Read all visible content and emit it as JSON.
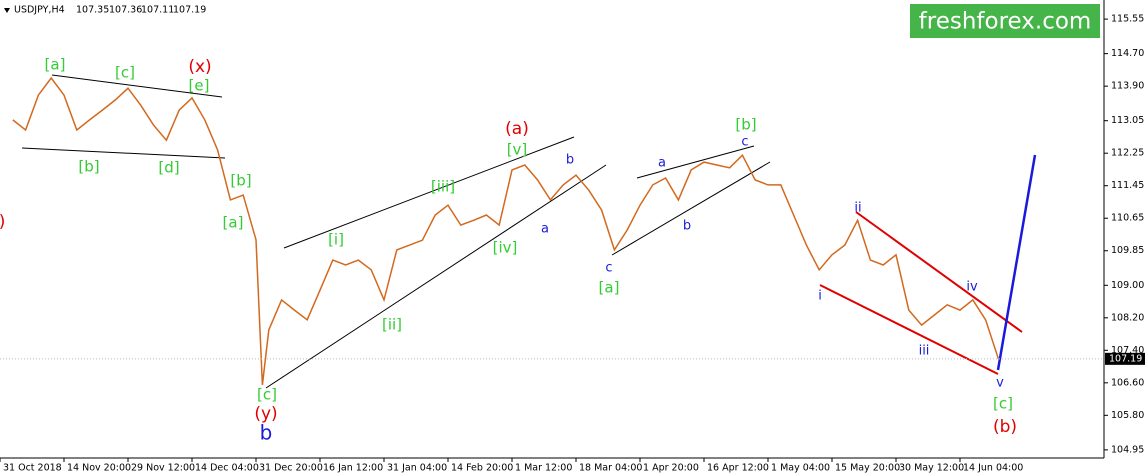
{
  "chart_data": {
    "type": "line",
    "header": {
      "symbol": "USDJPY,H4",
      "open": 107.35,
      "high": 107.36,
      "low": 107.11,
      "close": 107.19
    },
    "logo": "freshforex.com",
    "x": [
      2,
      4,
      6,
      8,
      10,
      12,
      14,
      16,
      18,
      20,
      22,
      24,
      26,
      28,
      30,
      32,
      34,
      36,
      38,
      40,
      41,
      42,
      44,
      46,
      48,
      50,
      52,
      54,
      56,
      58,
      60,
      62,
      64,
      66,
      68,
      70,
      72,
      74,
      76,
      78,
      80,
      82,
      84,
      86,
      88,
      90,
      92,
      94,
      96,
      98,
      100,
      102,
      104,
      106,
      108,
      110,
      112,
      114,
      116,
      118,
      120,
      122,
      124,
      126,
      128,
      130,
      132,
      134,
      136,
      138,
      140,
      142,
      144,
      146,
      148,
      150,
      152,
      154,
      156
    ],
    "series": [
      {
        "name": "USDJPY",
        "color": "#d2691e",
        "values": [
          113.07,
          112.82,
          113.68,
          114.1,
          113.68,
          112.82,
          113.07,
          113.31,
          113.56,
          113.85,
          113.43,
          112.94,
          112.57,
          113.31,
          113.61,
          113.07,
          112.33,
          111.1,
          111.22,
          110.12,
          106.55,
          107.9,
          108.64,
          108.39,
          108.15,
          108.88,
          109.62,
          109.5,
          109.62,
          109.38,
          108.64,
          109.87,
          109.99,
          110.11,
          110.73,
          110.97,
          110.48,
          110.6,
          110.73,
          110.48,
          111.84,
          111.96,
          111.59,
          111.1,
          111.47,
          111.71,
          111.34,
          110.85,
          109.87,
          110.36,
          110.97,
          111.47,
          111.64,
          111.1,
          111.84,
          112.03,
          111.96,
          111.89,
          112.2,
          111.59,
          111.47,
          111.47,
          110.73,
          109.99,
          109.38,
          109.75,
          109.99,
          110.6,
          109.62,
          109.5,
          109.75,
          108.39,
          108.02,
          108.27,
          108.52,
          108.39,
          108.64,
          108.15,
          107.19
        ]
      }
    ],
    "xlim": [
      0,
      172.5
    ],
    "xticks": [
      {
        "value": 0,
        "label": "31 Oct 2018"
      },
      {
        "value": 10,
        "label": "14 Nov 20:00"
      },
      {
        "value": 20,
        "label": "29 Nov 12:00"
      },
      {
        "value": 30,
        "label": "14 Dec 04:00"
      },
      {
        "value": 40,
        "label": "31 Dec 20:00"
      },
      {
        "value": 50,
        "label": "16 Jan 12:00"
      },
      {
        "value": 60,
        "label": "31 Jan 04:00"
      },
      {
        "value": 70,
        "label": "14 Feb 20:00"
      },
      {
        "value": 80,
        "label": "1 Mar 12:00"
      },
      {
        "value": 90,
        "label": "18 Mar 04:00"
      },
      {
        "value": 100,
        "label": "1 Apr 20:00"
      },
      {
        "value": 110,
        "label": "16 Apr 12:00"
      },
      {
        "value": 120,
        "label": "1 May 04:00"
      },
      {
        "value": 130,
        "label": "15 May 20:00"
      },
      {
        "value": 140,
        "label": "30 May 12:00"
      },
      {
        "value": 150,
        "label": "14 Jun 04:00"
      }
    ],
    "ylim": [
      104.75,
      116.02
    ],
    "yticks": [
      115.55,
      {
        "value": 114.7,
        "label": "114.70"
      },
      {
        "value": 113.9,
        "label": "113.90"
      },
      113.05,
      112.25,
      111.45,
      110.65,
      109.85,
      {
        "value": 109,
        "label": "109.00"
      },
      {
        "value": 108.2,
        "label": "108.20"
      },
      {
        "value": 107.4,
        "label": "107.40"
      },
      {
        "value": 106.6,
        "label": "106.60"
      },
      {
        "value": 105.8,
        "label": "105.80"
      },
      104.95
    ],
    "annotations": [
      {
        "text": "[a]",
        "color": "#33cc33"
      },
      {
        "text": "[c]",
        "color": "#33cc33"
      },
      {
        "text": "[e]",
        "color": "#33cc33"
      },
      {
        "text": "[b]",
        "color": "#33cc33"
      },
      {
        "text": "[d]",
        "color": "#33cc33"
      },
      {
        "text": "[b]",
        "color": "#33cc33"
      },
      {
        "text": "[a]",
        "color": "#33cc33"
      },
      {
        "text": "[c]",
        "color": "#33cc33"
      },
      {
        "text": "[i]",
        "color": "#33cc33"
      },
      {
        "text": "[ii]",
        "color": "#33cc33"
      },
      {
        "text": "[iii]",
        "color": "#33cc33"
      },
      {
        "text": "[iv]",
        "color": "#33cc33"
      },
      {
        "text": "[v]",
        "color": "#33cc33"
      },
      {
        "text": "[b]",
        "color": "#33cc33"
      },
      {
        "text": "[a]",
        "color": "#33cc33"
      },
      {
        "text": "[c]",
        "color": "#33cc33"
      },
      {
        "text": "(x)",
        "color": "#e00000"
      },
      {
        "text": "(a)",
        "color": "#e00000"
      },
      {
        "text": "(y)",
        "color": "#e00000"
      },
      {
        "text": "(b)",
        "color": "#e00000"
      },
      {
        "text": ")",
        "color": "#e00000"
      },
      {
        "text": "b",
        "color": "#1a1adb"
      },
      {
        "text": "b",
        "color": "#1a1adb"
      },
      {
        "text": "a",
        "color": "#1a1adb"
      },
      {
        "text": "c",
        "color": "#1a1adb"
      },
      {
        "text": "a",
        "color": "#1a1adb"
      },
      {
        "text": "b",
        "color": "#1a1adb"
      },
      {
        "text": "c",
        "color": "#1a1adb"
      },
      {
        "text": "ii",
        "color": "#1a1adb"
      },
      {
        "text": "i",
        "color": "#1a1adb"
      },
      {
        "text": "iii",
        "color": "#1a1adb"
      },
      {
        "text": "iv",
        "color": "#1a1adb"
      },
      {
        "text": "v",
        "color": "#1a1adb"
      }
    ]
  }
}
